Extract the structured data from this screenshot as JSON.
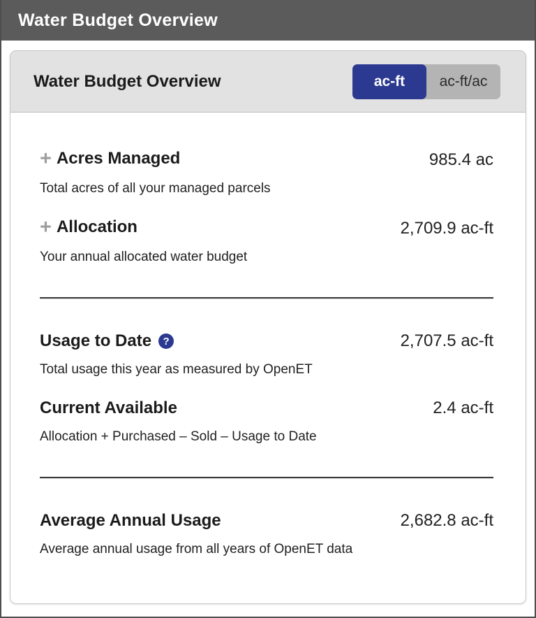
{
  "window": {
    "title": "Water Budget Overview"
  },
  "card": {
    "title": "Water Budget Overview",
    "unit_toggle": {
      "options": [
        {
          "label": "ac-ft",
          "active": true
        },
        {
          "label": "ac-ft/ac",
          "active": false
        }
      ]
    },
    "sections": [
      {
        "rows": [
          {
            "label": "Acres Managed",
            "value": "985.4 ac",
            "description": "Total acres of all your managed parcels"
          },
          {
            "label": "Allocation",
            "value": "2,709.9 ac-ft",
            "description": "Your annual allocated water budget"
          }
        ]
      },
      {
        "rows": [
          {
            "label": "Usage to Date",
            "value": "2,707.5 ac-ft",
            "description": "Total usage this year as measured by OpenET"
          },
          {
            "label": "Current Available",
            "value": "2.4 ac-ft",
            "description": "Allocation + Purchased – Sold – Usage to Date"
          }
        ]
      },
      {
        "rows": [
          {
            "label": "Average Annual Usage",
            "value": "2,682.8 ac-ft",
            "description": "Average annual usage from all years of OpenET data"
          }
        ]
      }
    ]
  },
  "icons": {
    "plus": "+",
    "help": "?"
  },
  "colors": {
    "accent_navy": "#2b3990",
    "titlebar_gray": "#5b5b5b",
    "card_header_gray": "#e2e2e2",
    "toggle_inactive_gray": "#b4b4b4",
    "divider_dark": "#3c3c3c"
  }
}
